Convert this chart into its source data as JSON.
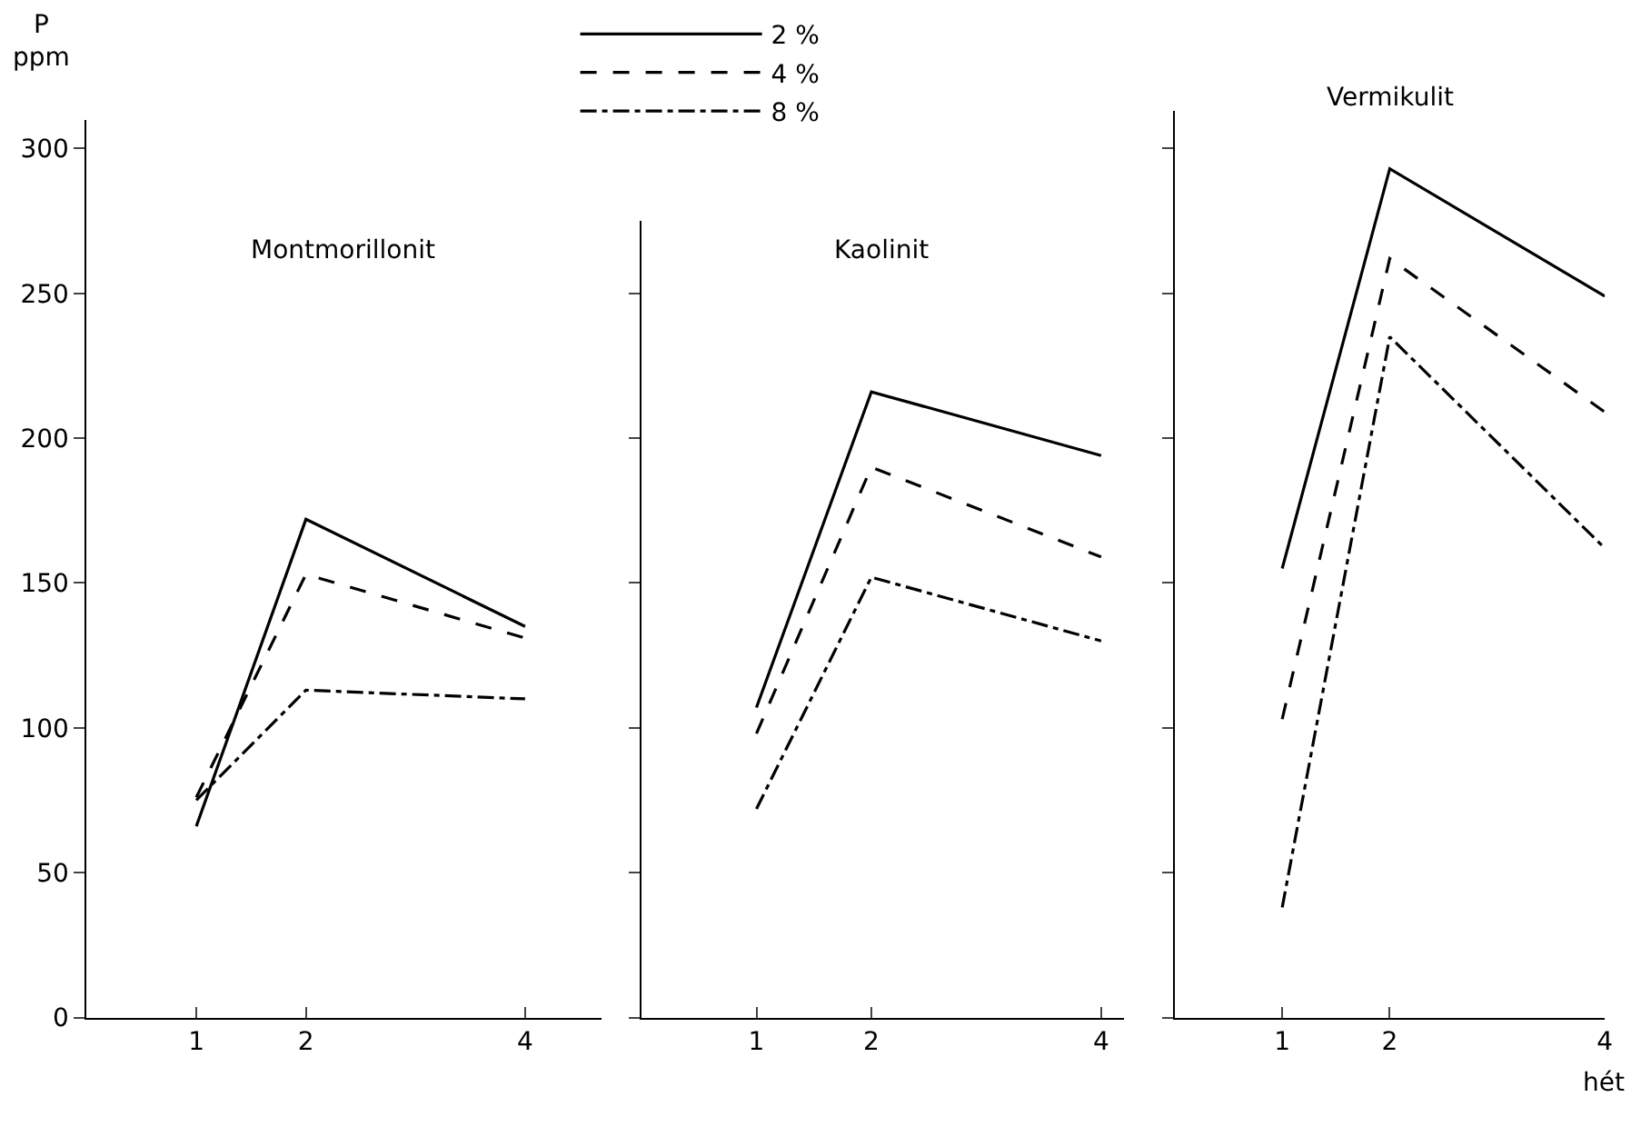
{
  "chart_data": [
    {
      "type": "line",
      "title": "Montmorillonit",
      "ylabel": "P\nppm",
      "x": [
        1,
        2,
        4
      ],
      "xlim": [
        0,
        4.7
      ],
      "xticks": [
        1,
        2,
        4
      ],
      "ylim": [
        0,
        310
      ],
      "yticks": [
        0,
        50,
        100,
        150,
        200,
        250,
        300
      ],
      "legend": "top right",
      "series": [
        {
          "name": "2 %",
          "color": "#000000",
          "line_style": "solid",
          "values": [
            66,
            172,
            135
          ]
        },
        {
          "name": "4 %",
          "color": "#000000",
          "line_style": "dashed",
          "values": [
            76,
            153,
            131
          ]
        },
        {
          "name": "8 %",
          "color": "#000000",
          "line_style": "dashdot",
          "values": [
            75,
            113,
            110
          ]
        }
      ]
    },
    {
      "type": "line",
      "title": "Kaolinit",
      "x": [
        1,
        2,
        4
      ],
      "xlim": [
        0,
        4.2
      ],
      "xticks": [
        1,
        2,
        4
      ],
      "ylim": [
        0,
        275
      ],
      "yticks": [
        0,
        50,
        100,
        150,
        200,
        250
      ],
      "tick_labels": "x",
      "series": [
        {
          "color": "#000000",
          "line_style": "solid",
          "values": [
            107,
            216,
            194
          ]
        },
        {
          "color": "#000000",
          "line_style": "dashed",
          "values": [
            98,
            190,
            159
          ]
        },
        {
          "color": "#000000",
          "line_style": "dashdot",
          "values": [
            72,
            152,
            130
          ]
        }
      ]
    },
    {
      "type": "line",
      "title": "Vermikulit",
      "xlabel": "hét",
      "x": [
        1,
        2,
        4
      ],
      "xlim": [
        0,
        4
      ],
      "xticks": [
        1,
        2,
        4
      ],
      "ylim": [
        0,
        313
      ],
      "yticks": [
        0,
        50,
        100,
        150,
        200,
        250,
        300
      ],
      "tick_labels": "x",
      "series": [
        {
          "color": "#000000",
          "line_style": "solid",
          "values": [
            155,
            293,
            249
          ]
        },
        {
          "color": "#000000",
          "line_style": "dashed",
          "values": [
            103,
            262,
            209
          ]
        },
        {
          "color": "#000000",
          "line_style": "dashdot",
          "values": [
            38,
            235,
            162
          ]
        }
      ]
    }
  ]
}
